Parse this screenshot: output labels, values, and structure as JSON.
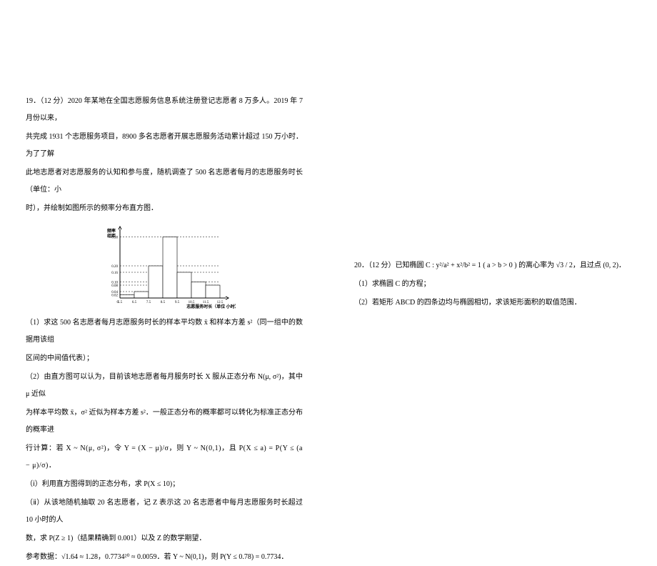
{
  "left": {
    "q_num": "19．（12 分）",
    "p1a": "2020 年某地在全国志愿服务信息系统注册登记志愿者 8 万多人。2019 年 7 月份以来，",
    "p1b": "共完成 1931 个志愿服务项目，8900 多名志愿者开展志愿服务活动累计超过 150 万小时．为了了解",
    "p1c": "此地志愿者对志愿服务的认知和参与度，随机调查了 500 名志愿者每月的志愿服务时长（单位：小",
    "p1d": "时），并绘制如图所示的频率分布直方图．",
    "hist": {
      "y_label": "频率/组距",
      "x_label": "志愿服务时长（单位 小时）",
      "y_ticks": [
        "0.02",
        "0.04",
        "0.08",
        "0.10",
        "0.16",
        "0.20",
        "0.38"
      ],
      "x_ticks": [
        "0",
        "5.5",
        "6.5",
        "7.5",
        "8.5",
        "9.5",
        "10.5",
        "11.5",
        "12.5"
      ],
      "bars": [
        {
          "x": 5.5,
          "h": 0.02,
          "color": "#ffffff"
        },
        {
          "x": 6.5,
          "h": 0.04,
          "color": "#ffffff"
        },
        {
          "x": 7.5,
          "h": 0.2,
          "color": "#ffffff"
        },
        {
          "x": 8.5,
          "h": 0.38,
          "color": "#ffffff"
        },
        {
          "x": 9.5,
          "h": 0.16,
          "color": "#ffffff"
        },
        {
          "x": 10.5,
          "h": 0.1,
          "color": "#ffffff"
        },
        {
          "x": 11.5,
          "h": 0.08,
          "color": "#ffffff"
        }
      ],
      "dash_levels": [
        0.02,
        0.04,
        0.08,
        0.1,
        0.16,
        0.2,
        0.38
      ],
      "axis_color": "#000000",
      "dash_color": "#000000",
      "bg": "#ffffff"
    },
    "p2a": "（1）求这 500 名志愿者每月志愿服务时长的样本平均数 x̄ 和样本方差 s²（同一组中的数据用该组",
    "p2b": "区间的中间值代表）；",
    "p3a": "（2）由直方图可以认为，目前该地志愿者每月服务时长 X 服从正态分布 N(μ, σ²)，其中 μ 近似",
    "p3b": "为样本平均数 x̄，σ² 近似为样本方差 s²．一般正态分布的概率都可以转化为标准正态分布的概率进",
    "p3c": "行计算：若 X ~ N(μ, σ²)，令 Y = (X − μ)/σ，则 Y ~ N(0,1)，且 P(X ≤ a) = P(Y ≤ (a − μ)/σ)．",
    "p4": "（ⅰ）利用直方图得到的正态分布，求 P(X ≤ 10)；",
    "p5a": "（ⅱ）从该地随机抽取 20 名志愿者，记 Z 表示这 20 名志愿者中每月志愿服务时长超过 10 小时的人",
    "p5b": "数，求 P(Z ≥ 1)（结果精确到 0.001）以及 Z 的数学期望．",
    "p6": "参考数据：√1.64 ≈ 1.28，0.7734²⁰ ≈ 0.0059．若 Y ~ N(0,1)，则 P(Y ≤ 0.78) = 0.7734．"
  },
  "right": {
    "q_num": "20．（12 分）",
    "p1": "已知椭圆 C : y²/a² + x²/b² = 1 ( a > b > 0 ) 的离心率为 √3 / 2，且过点 (0, 2)．",
    "p2": "（1）求椭圆 C 的方程；",
    "p3": "（2）若矩形 ABCD 的四条边均与椭圆相切，求该矩形面积的取值范围．"
  }
}
